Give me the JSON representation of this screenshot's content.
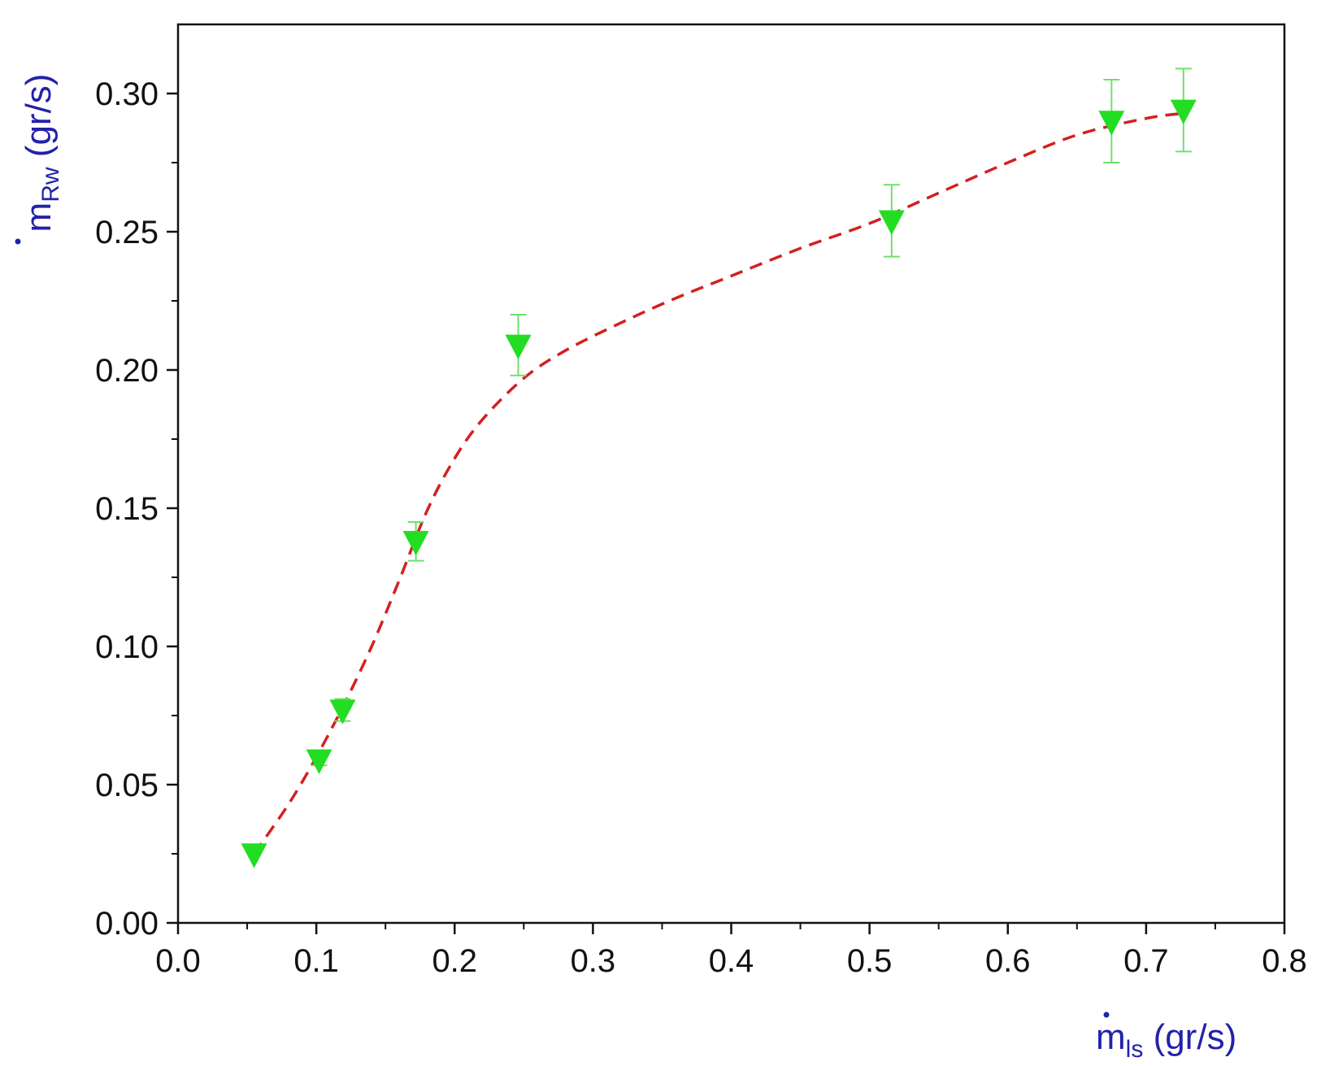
{
  "chart_data": {
    "type": "scatter",
    "xlabel": {
      "symbol": "m",
      "subscript": "ls",
      "unit": "(gr/s)"
    },
    "ylabel": {
      "symbol": "m",
      "subscript": "Rw",
      "unit": "(gr/s)"
    },
    "xlim": [
      0.0,
      0.8
    ],
    "ylim": [
      0.0,
      0.325
    ],
    "x_ticks": [
      "0.0",
      "0.1",
      "0.2",
      "0.3",
      "0.4",
      "0.5",
      "0.6",
      "0.7",
      "0.8"
    ],
    "y_ticks": [
      "0.00",
      "0.05",
      "0.10",
      "0.15",
      "0.20",
      "0.25",
      "0.30"
    ],
    "grid": false,
    "series": [
      {
        "kind": "points",
        "marker": "triangle-down",
        "color": "#22dd22",
        "errorbar_color": "#6ee06e",
        "points": [
          {
            "x": 0.055,
            "y": 0.025,
            "err": 0.0
          },
          {
            "x": 0.102,
            "y": 0.059,
            "err": 0.002
          },
          {
            "x": 0.119,
            "y": 0.077,
            "err": 0.004
          },
          {
            "x": 0.172,
            "y": 0.138,
            "err": 0.007
          },
          {
            "x": 0.246,
            "y": 0.209,
            "err": 0.011
          },
          {
            "x": 0.516,
            "y": 0.254,
            "err": 0.013
          },
          {
            "x": 0.675,
            "y": 0.29,
            "err": 0.015
          },
          {
            "x": 0.727,
            "y": 0.294,
            "err": 0.015
          }
        ]
      },
      {
        "kind": "fit-line",
        "style": "dashed",
        "color": "#d42020",
        "x": [
          0.055,
          0.08,
          0.1,
          0.12,
          0.14,
          0.16,
          0.18,
          0.2,
          0.22,
          0.25,
          0.28,
          0.32,
          0.36,
          0.4,
          0.45,
          0.5,
          0.55,
          0.6,
          0.65,
          0.7,
          0.73
        ],
        "y": [
          0.025,
          0.043,
          0.06,
          0.079,
          0.1,
          0.124,
          0.149,
          0.168,
          0.182,
          0.197,
          0.207,
          0.217,
          0.226,
          0.234,
          0.244,
          0.253,
          0.264,
          0.275,
          0.285,
          0.291,
          0.293
        ]
      }
    ]
  }
}
